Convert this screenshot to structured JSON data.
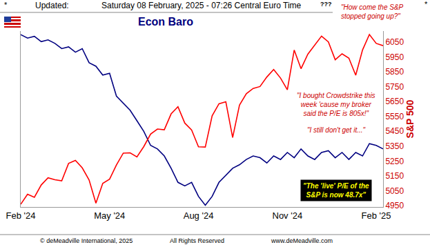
{
  "chart_data": {
    "type": "line",
    "title": "Econ Baro",
    "header": [
      "*",
      "Updated:",
      "Saturday 08 February, 2025 - 07:26 Central Euro Time",
      "*"
    ],
    "footer": [
      "© deMeadville International, 2025",
      "All Rights Reserved",
      "www.deMeadville.com"
    ],
    "annotations": [
      [
        "???"
      ],
      [
        "\"How come the S&P",
        "stopped going up?\""
      ],
      [
        "\"I bought Crowdstrike this",
        "week 'cause my broker",
        "said the P/E is 805x!\""
      ],
      [
        "\"I still don't get it...\""
      ],
      [
        "\"The 'live' P/E of the",
        "S&P is now 48.7x\""
      ]
    ],
    "y2_label": "S&P 500",
    "categories": [
      "Feb '24",
      null,
      null,
      null,
      null,
      null,
      null,
      null,
      null,
      null,
      null,
      null,
      null,
      "May '24",
      null,
      null,
      null,
      null,
      null,
      null,
      null,
      null,
      null,
      null,
      null,
      null,
      "Aug '24",
      null,
      null,
      null,
      null,
      null,
      null,
      null,
      null,
      null,
      null,
      null,
      null,
      "Nov '24",
      null,
      null,
      null,
      null,
      null,
      null,
      null,
      null,
      null,
      null,
      null,
      null,
      "Feb '25",
      null
    ],
    "series": [
      {
        "color": "#000080",
        "axis": "y",
        "values": [
          98,
          96,
          97,
          94,
          95,
          93,
          90,
          91,
          88,
          90,
          82,
          80,
          75,
          76,
          63,
          59,
          55,
          49,
          43,
          35,
          33,
          29,
          22,
          14,
          12,
          14,
          6,
          1,
          6,
          14,
          18,
          22,
          24,
          27,
          29,
          28,
          25,
          29,
          27,
          31,
          28,
          33,
          29,
          27,
          31,
          32,
          28,
          31,
          27,
          31,
          29,
          36,
          35,
          33
        ]
      },
      {
        "color": "#ff0000",
        "axis": "y2",
        "values": [
          4959,
          5027,
          5006,
          5089,
          5137,
          5124,
          5117,
          5234,
          5254,
          5204,
          5123,
          4967,
          5100,
          5128,
          5223,
          5303,
          5305,
          5278,
          5347,
          5431,
          5465,
          5460,
          5567,
          5615,
          5505,
          5459,
          5346,
          5344,
          5554,
          5635,
          5648,
          5408,
          5626,
          5703,
          5738,
          5751,
          5815,
          5865,
          5808,
          5729,
          5996,
          5871,
          5969,
          6032,
          6090,
          6051,
          5931,
          5971,
          5942,
          5827,
          5997,
          6101,
          6041,
          6026
        ]
      }
    ],
    "ylim": [
      0,
      100
    ],
    "y2lim": [
      4941,
      6124
    ],
    "y2ticks": [
      4950,
      5050,
      5150,
      5250,
      5350,
      5450,
      5550,
      5650,
      5750,
      5850,
      5950,
      6050
    ],
    "grid": false
  }
}
